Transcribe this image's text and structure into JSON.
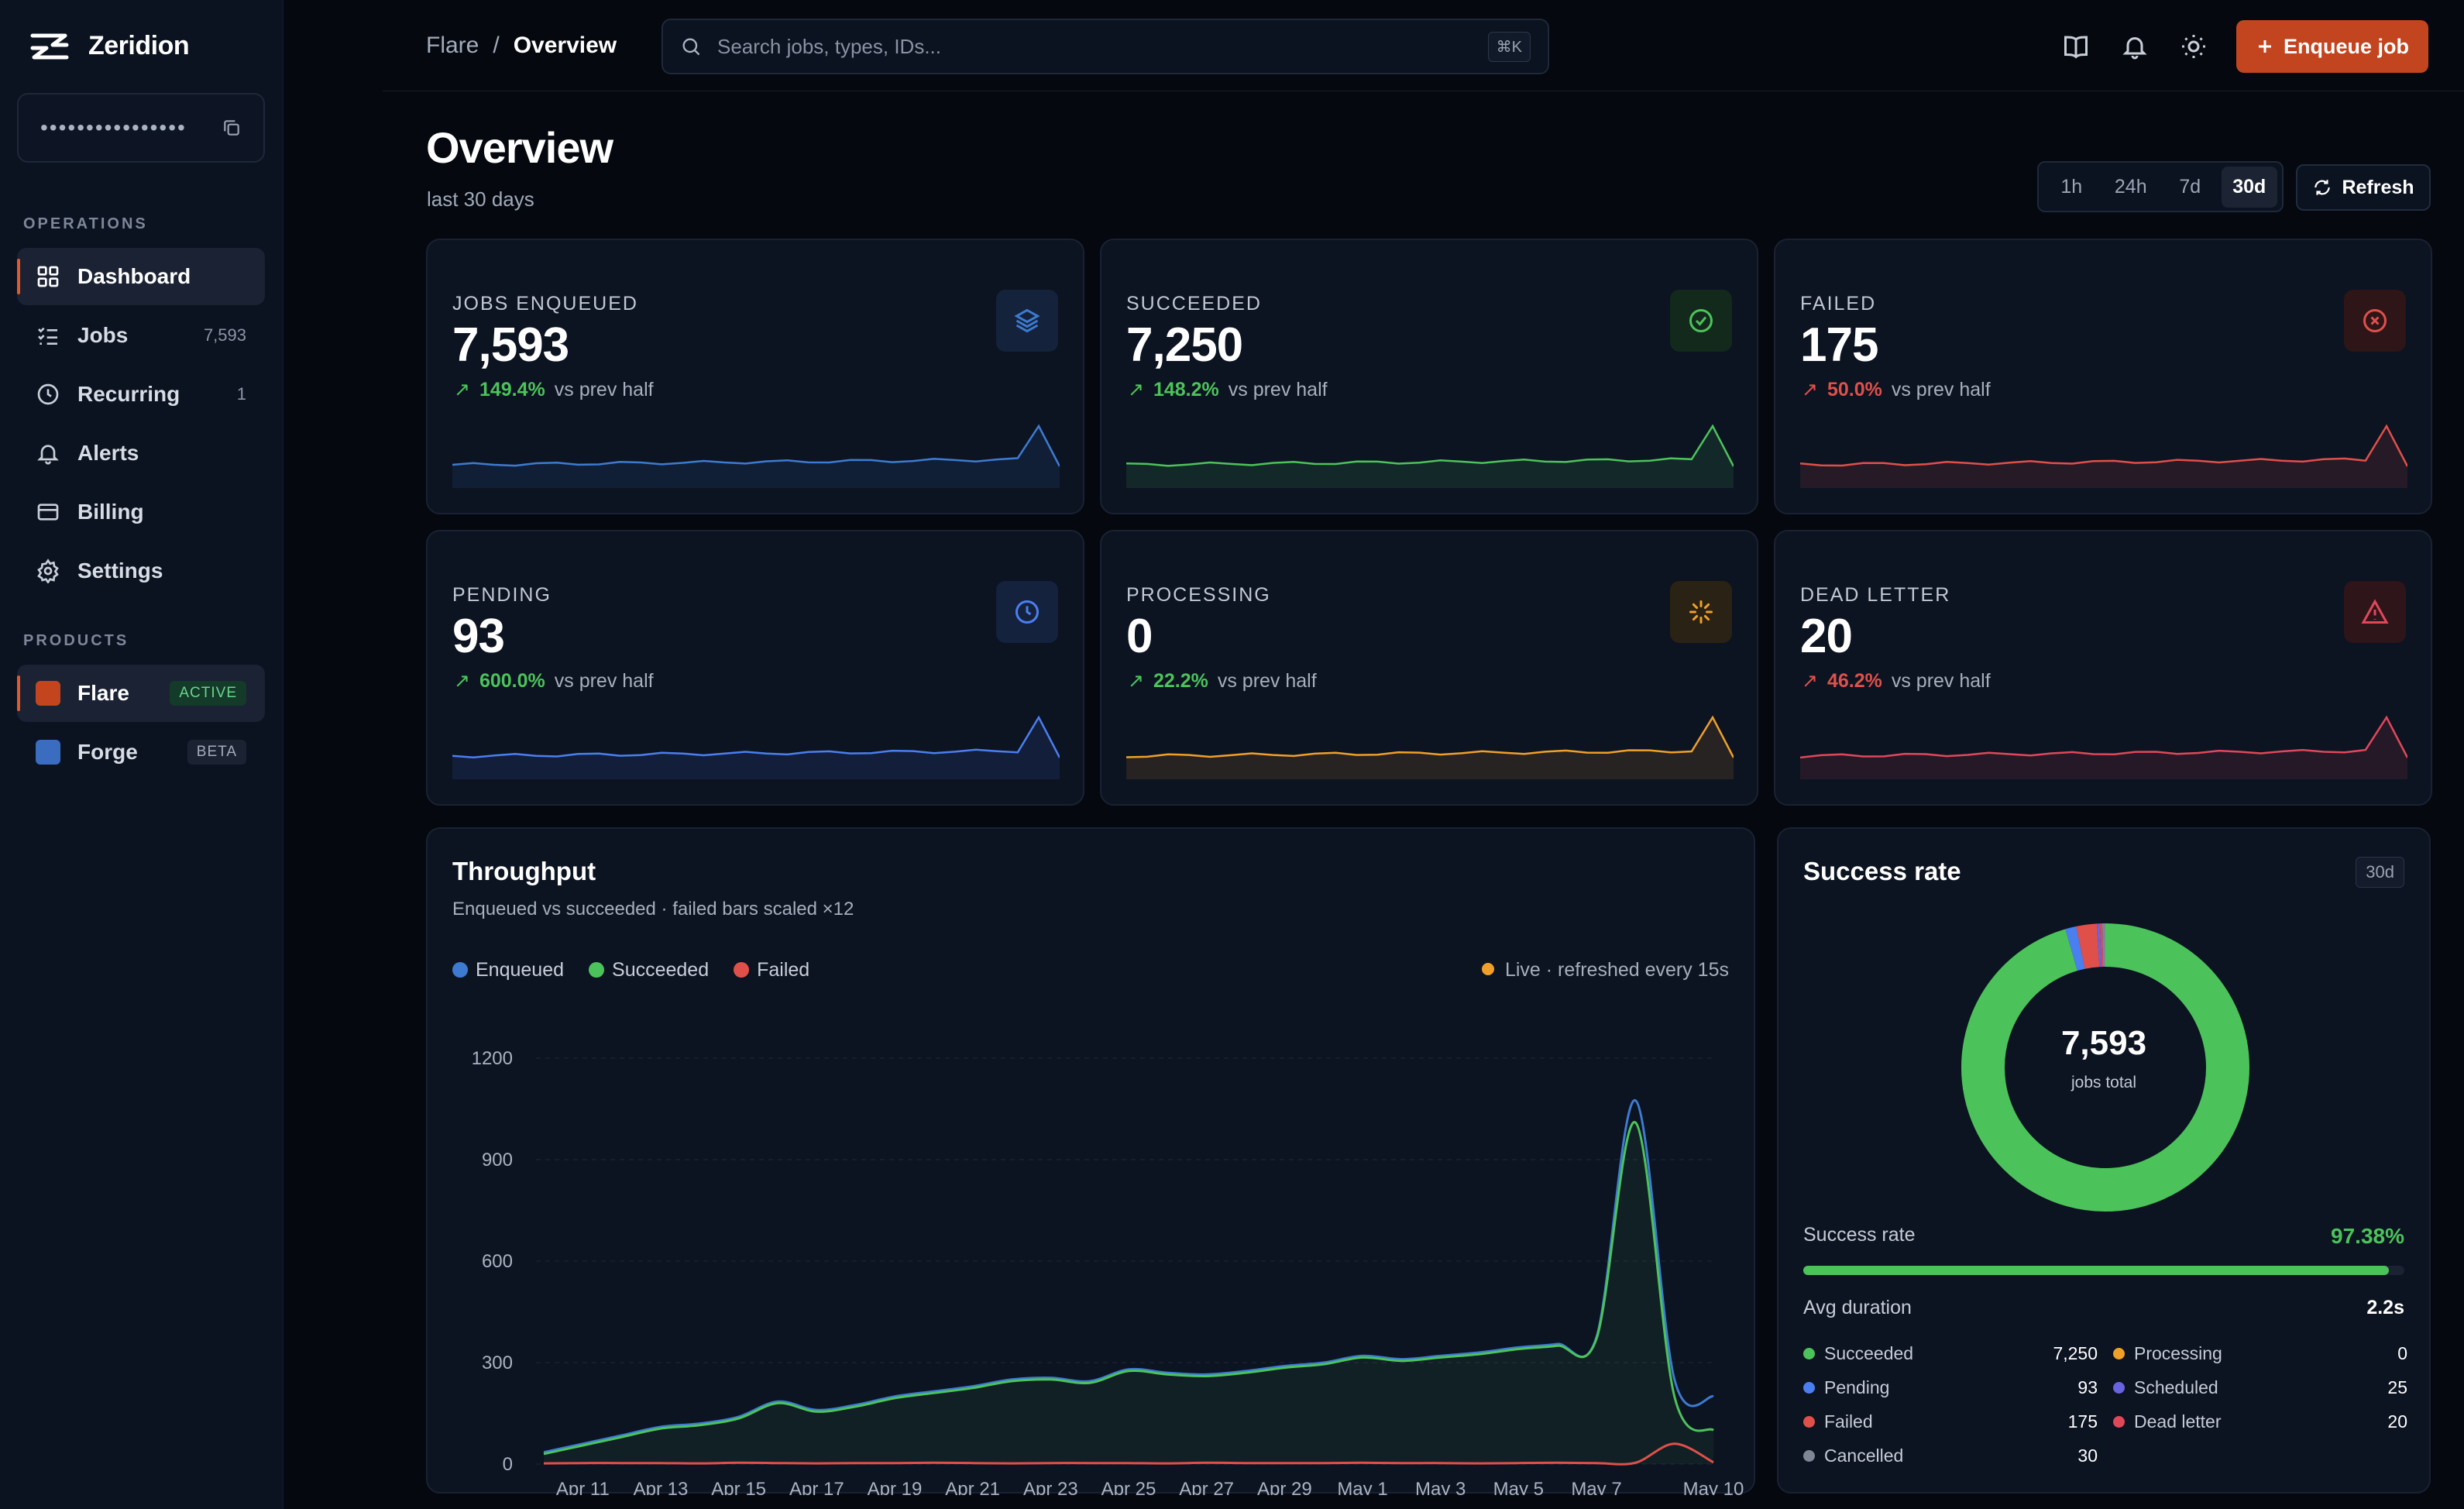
{
  "brand": {
    "name": "Zeridion"
  },
  "api_key": {
    "masked": "••••••••••••••••"
  },
  "sidebar": {
    "operations_label": "OPERATIONS",
    "items": [
      {
        "label": "Dashboard",
        "icon": "grid-icon",
        "count": ""
      },
      {
        "label": "Jobs",
        "icon": "list-check-icon",
        "count": "7,593"
      },
      {
        "label": "Recurring",
        "icon": "clock-icon",
        "count": "1"
      },
      {
        "label": "Alerts",
        "icon": "bell-icon",
        "count": ""
      },
      {
        "label": "Billing",
        "icon": "card-icon",
        "count": ""
      },
      {
        "label": "Settings",
        "icon": "gear-icon",
        "count": ""
      }
    ],
    "products_label": "PRODUCTS",
    "products": [
      {
        "label": "Flare",
        "tag": "ACTIVE",
        "color": "#c2451f"
      },
      {
        "label": "Forge",
        "tag": "BETA",
        "color": "#3a6cc0"
      }
    ]
  },
  "topbar": {
    "crumb_parent": "Flare",
    "crumb_sep": "/",
    "crumb_current": "Overview",
    "search_placeholder": "Search jobs, types, IDs...",
    "search_shortcut": "⌘K",
    "enqueue_label": "Enqueue job"
  },
  "page": {
    "title": "Overview",
    "subtitle": "last 30 days",
    "ranges": [
      "1h",
      "24h",
      "7d",
      "30d"
    ],
    "active_range": "30d",
    "refresh_label": "Refresh"
  },
  "stats": [
    {
      "label": "JOBS ENQUEUED",
      "value": "7,593",
      "pct": "149.4%",
      "vs": "vs prev half",
      "color": "#3d7bd1",
      "delta_color": "#4cc35a",
      "icon": "layers-icon"
    },
    {
      "label": "SUCCEEDED",
      "value": "7,250",
      "pct": "148.2%",
      "vs": "vs prev half",
      "color": "#4cc35a",
      "delta_color": "#4cc35a",
      "icon": "check-circle-icon"
    },
    {
      "label": "FAILED",
      "value": "175",
      "pct": "50.0%",
      "vs": "vs prev half",
      "color": "#e0504a",
      "delta_color": "#e0504a",
      "icon": "x-circle-icon"
    },
    {
      "label": "PENDING",
      "value": "93",
      "pct": "600.0%",
      "vs": "vs prev half",
      "color": "#4a7ff0",
      "delta_color": "#4cc35a",
      "icon": "clock-icon"
    },
    {
      "label": "PROCESSING",
      "value": "0",
      "pct": "22.2%",
      "vs": "vs prev half",
      "color": "#f0a028",
      "delta_color": "#4cc35a",
      "icon": "spinner-icon"
    },
    {
      "label": "DEAD LETTER",
      "value": "20",
      "pct": "46.2%",
      "vs": "vs prev half",
      "color": "#e0485a",
      "delta_color": "#e0504a",
      "icon": "warning-icon"
    }
  ],
  "throughput": {
    "title": "Throughput",
    "subtitle": "Enqueued vs succeeded · failed bars scaled ×12",
    "live": "Live · refreshed every 15s"
  },
  "chart_data": {
    "type": "area",
    "title": "Throughput",
    "x": [
      "Apr 10",
      "Apr 11",
      "Apr 12",
      "Apr 13",
      "Apr 14",
      "Apr 15",
      "Apr 16",
      "Apr 17",
      "Apr 18",
      "Apr 19",
      "Apr 20",
      "Apr 21",
      "Apr 22",
      "Apr 23",
      "Apr 24",
      "Apr 25",
      "Apr 26",
      "Apr 27",
      "Apr 28",
      "Apr 29",
      "Apr 30",
      "May 1",
      "May 2",
      "May 3",
      "May 4",
      "May 5",
      "May 6",
      "May 7",
      "May 8",
      "May 9",
      "May 10"
    ],
    "x_ticks": [
      "Apr 11",
      "Apr 13",
      "Apr 15",
      "Apr 17",
      "Apr 19",
      "Apr 21",
      "Apr 23",
      "Apr 25",
      "Apr 27",
      "Apr 29",
      "May 1",
      "May 3",
      "May 5",
      "May 7",
      "May 10"
    ],
    "series": [
      {
        "name": "Enqueued",
        "color": "#3d7bd1",
        "values": [
          35,
          60,
          85,
          110,
          120,
          140,
          185,
          160,
          175,
          200,
          215,
          230,
          250,
          255,
          245,
          280,
          270,
          265,
          275,
          290,
          300,
          320,
          310,
          320,
          330,
          345,
          355,
          375,
          1075,
          250,
          200
        ]
      },
      {
        "name": "Succeeded",
        "color": "#4cc35a",
        "values": [
          30,
          55,
          80,
          105,
          115,
          135,
          180,
          155,
          170,
          195,
          210,
          225,
          245,
          250,
          240,
          275,
          265,
          260,
          270,
          285,
          295,
          315,
          305,
          315,
          325,
          340,
          350,
          370,
          1010,
          200,
          100
        ]
      },
      {
        "name": "Failed",
        "color": "#e0504a",
        "values": [
          2,
          3,
          3,
          3,
          2,
          4,
          3,
          2,
          3,
          3,
          4,
          3,
          2,
          3,
          3,
          3,
          2,
          4,
          3,
          3,
          3,
          4,
          3,
          3,
          2,
          3,
          4,
          3,
          4,
          60,
          5
        ]
      }
    ],
    "ylim": [
      0,
      1200
    ],
    "y_ticks": [
      0,
      300,
      600,
      900,
      1200
    ],
    "grid": true,
    "legend": "top-left"
  },
  "success": {
    "title": "Success rate",
    "badge": "30d",
    "total": "7,593",
    "total_label": "jobs total",
    "donut": [
      {
        "name": "Succeeded",
        "value": 7250,
        "color": "#4cc35a"
      },
      {
        "name": "Pending",
        "value": 93,
        "color": "#4a7ff0"
      },
      {
        "name": "Failed",
        "value": 175,
        "color": "#e0504a"
      },
      {
        "name": "Processing",
        "value": 0,
        "color": "#f0a028"
      },
      {
        "name": "Scheduled",
        "value": 25,
        "color": "#6a63e0"
      },
      {
        "name": "Dead letter",
        "value": 20,
        "color": "#e0485a"
      },
      {
        "name": "Cancelled",
        "value": 30,
        "color": "#7f8796"
      }
    ],
    "rate_label": "Success rate",
    "rate_value": "97.38%",
    "rate_fraction": 0.9738,
    "duration_label": "Avg duration",
    "duration_value": "2.2s",
    "breakdown": [
      {
        "label": "Succeeded",
        "value": "7,250",
        "color": "#4cc35a"
      },
      {
        "label": "Processing",
        "value": "0",
        "color": "#f0a028"
      },
      {
        "label": "Pending",
        "value": "93",
        "color": "#4a7ff0"
      },
      {
        "label": "Scheduled",
        "value": "25",
        "color": "#6a63e0"
      },
      {
        "label": "Failed",
        "value": "175",
        "color": "#e0504a"
      },
      {
        "label": "Dead letter",
        "value": "20",
        "color": "#e0485a"
      },
      {
        "label": "Cancelled",
        "value": "30",
        "color": "#7f8796"
      }
    ]
  }
}
